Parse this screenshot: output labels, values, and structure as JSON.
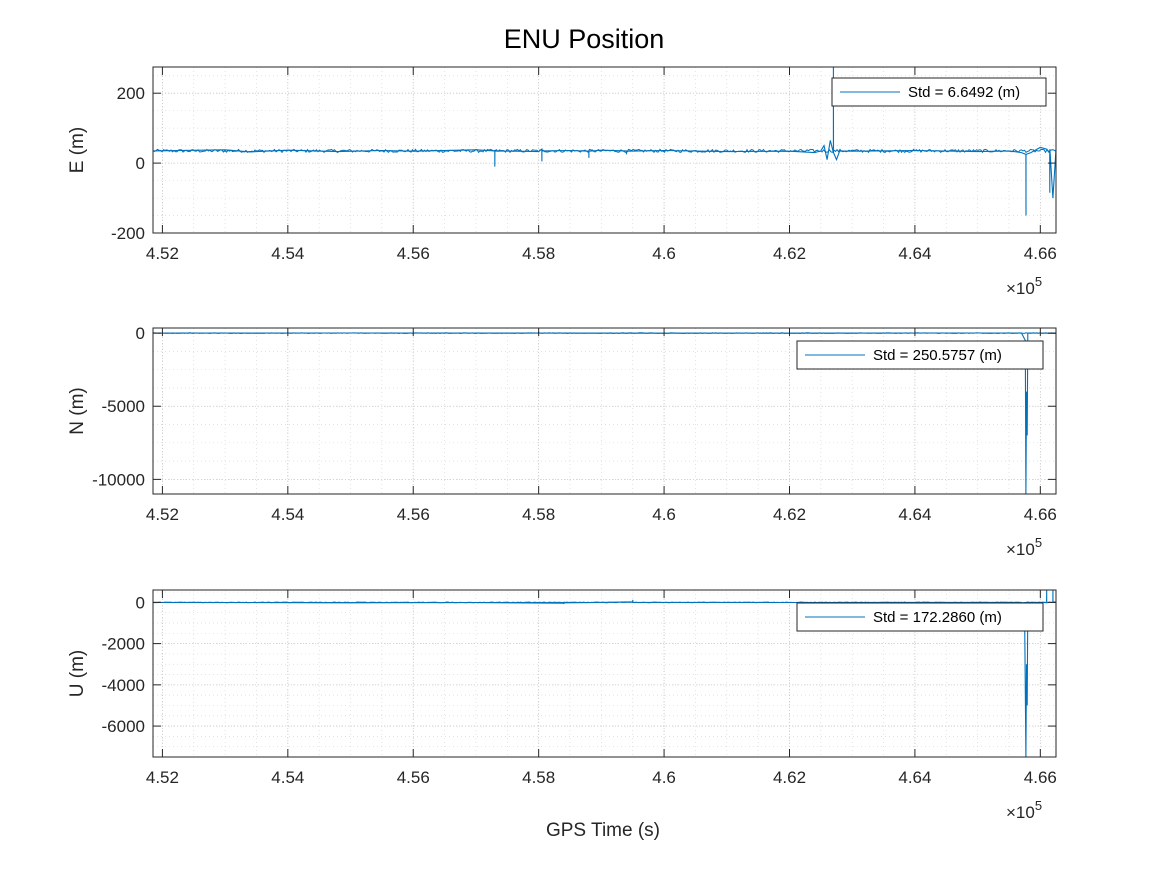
{
  "figure": {
    "title": "ENU Position",
    "xlabel": "GPS Time (s)",
    "x_exponent": {
      "times": "×10",
      "power": "5"
    },
    "line_color": "#0072BD"
  },
  "chart_data": [
    {
      "type": "line",
      "ylabel": "E (m)",
      "xlim": [
        451850,
        466250
      ],
      "ylim": [
        -200,
        275
      ],
      "x_ticks": [
        452000,
        454000,
        456000,
        458000,
        460000,
        462000,
        464000,
        466000
      ],
      "x_tick_labels": [
        "4.52",
        "4.54",
        "4.56",
        "4.58",
        "4.6",
        "4.62",
        "4.64",
        "4.66"
      ],
      "y_ticks": [
        -200,
        0,
        200
      ],
      "y_tick_labels": [
        "-200",
        "0",
        "200"
      ],
      "grid": true,
      "legend": "top-right",
      "series": [
        {
          "name": "Std = 6.6492 (m)",
          "baseline": 35,
          "x": [
            451850,
            453000,
            453400,
            454000,
            454800,
            455500,
            456000,
            457000,
            457300,
            457301,
            457302,
            458000,
            458050,
            458051,
            458052,
            458500,
            458800,
            458801,
            458802,
            459000,
            459400,
            459401,
            459402,
            460000,
            461000,
            462000,
            462400,
            462500,
            462550,
            462600,
            462650,
            462700,
            462701,
            462702,
            462750,
            462800,
            463000,
            464000,
            465000,
            465500,
            465700,
            465770,
            465771,
            465772,
            465850,
            466000,
            466100,
            466150,
            466151,
            466152,
            466200,
            466250
          ],
          "y": [
            35,
            38,
            32,
            37,
            33,
            36,
            34,
            38,
            35,
            -10,
            35,
            33,
            40,
            5,
            35,
            36,
            34,
            15,
            34,
            37,
            35,
            25,
            34,
            36,
            33,
            34,
            30,
            35,
            50,
            10,
            65,
            30,
            275,
            30,
            10,
            35,
            34,
            36,
            33,
            35,
            30,
            25,
            -150,
            25,
            30,
            45,
            40,
            30,
            -85,
            40,
            -100,
            40
          ]
        }
      ]
    },
    {
      "type": "line",
      "ylabel": "N (m)",
      "xlim": [
        451850,
        466250
      ],
      "ylim": [
        -11000,
        350
      ],
      "x_ticks": [
        452000,
        454000,
        456000,
        458000,
        460000,
        462000,
        464000,
        466000
      ],
      "x_tick_labels": [
        "4.52",
        "4.54",
        "4.56",
        "4.58",
        "4.6",
        "4.62",
        "4.64",
        "4.66"
      ],
      "y_ticks": [
        -10000,
        -5000,
        0
      ],
      "y_tick_labels": [
        "-10000",
        "-5000",
        "0"
      ],
      "grid": true,
      "legend": "top-right",
      "series": [
        {
          "name": "Std = 250.5757 (m)",
          "baseline": 0,
          "x": [
            451850,
            455000,
            460000,
            465000,
            465700,
            465760,
            465770,
            465780,
            465790,
            465800,
            465850,
            466000,
            466250
          ],
          "y": [
            0,
            10,
            -5,
            5,
            0,
            -500,
            -11000,
            -4000,
            -7000,
            0,
            5,
            0,
            -10
          ]
        }
      ]
    },
    {
      "type": "line",
      "ylabel": "U (m)",
      "xlim": [
        451850,
        466250
      ],
      "ylim": [
        -7500,
        600
      ],
      "x_ticks": [
        452000,
        454000,
        456000,
        458000,
        460000,
        462000,
        464000,
        466000
      ],
      "x_tick_labels": [
        "4.52",
        "4.54",
        "4.56",
        "4.58",
        "4.6",
        "4.62",
        "4.64",
        "4.66"
      ],
      "y_ticks": [
        -6000,
        -4000,
        -2000,
        0
      ],
      "y_tick_labels": [
        "-6000",
        "-4000",
        "-2000",
        "0"
      ],
      "grid": true,
      "legend": "top-right",
      "series": [
        {
          "name": "Std = 172.2860 (m)",
          "baseline": 0,
          "x": [
            451850,
            455000,
            457000,
            458400,
            458401,
            458402,
            459000,
            459500,
            459501,
            459502,
            460000,
            462000,
            465000,
            465700,
            465750,
            465770,
            465780,
            465790,
            465800,
            466000,
            466100,
            466101,
            466102,
            466200,
            466201,
            466202,
            466250
          ],
          "y": [
            0,
            -20,
            -10,
            -40,
            -80,
            -20,
            0,
            30,
            120,
            0,
            0,
            -5,
            0,
            0,
            -500,
            -7500,
            -3000,
            -5000,
            0,
            0,
            0,
            600,
            0,
            0,
            600,
            0,
            0
          ]
        }
      ]
    }
  ]
}
